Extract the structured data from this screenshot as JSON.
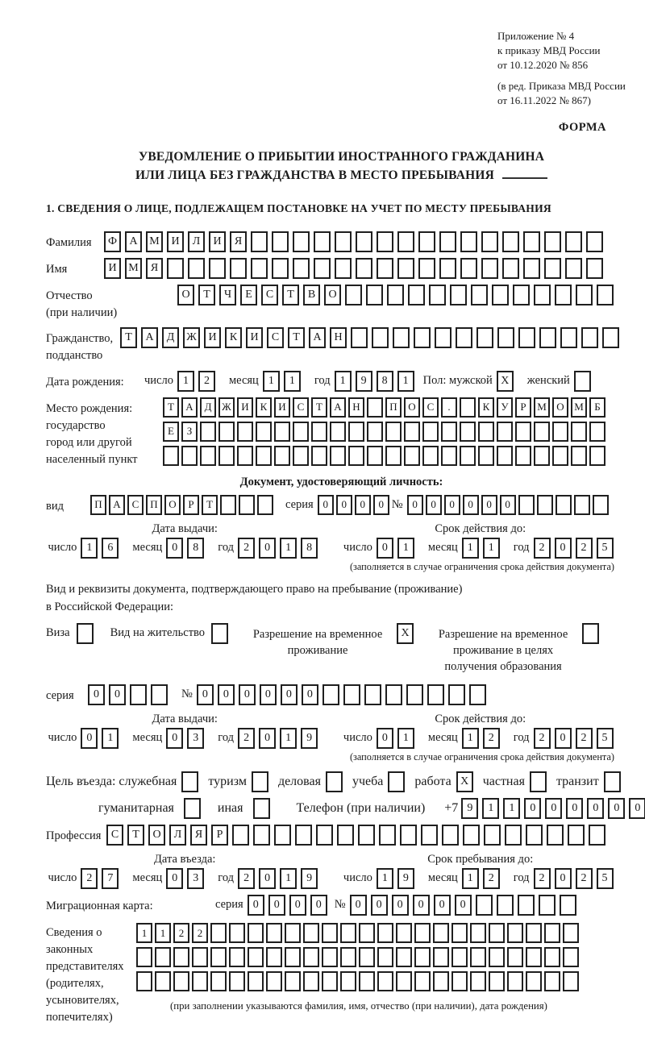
{
  "header": {
    "lines": [
      "Приложение № 4",
      "к приказу МВД России",
      "от 10.12.2020 № 856"
    ],
    "amendment": [
      "(в ред. Приказа МВД России",
      "от 16.11.2022 № 867)"
    ],
    "form_label": "ФОРМА"
  },
  "title": {
    "line1": "УВЕДОМЛЕНИЕ О ПРИБЫТИИ ИНОСТРАННОГО ГРАЖДАНИНА",
    "line2": "ИЛИ ЛИЦА БЕЗ ГРАЖДАНСТВА В МЕСТО ПРЕБЫВАНИЯ"
  },
  "section1_heading": "1. СВЕДЕНИЯ О ЛИЦЕ, ПОДЛЕЖАЩЕМ ПОСТАНОВКЕ НА УЧЕТ ПО МЕСТУ ПРЕБЫВАНИЯ",
  "date_labels": {
    "day": "число",
    "month": "месяц",
    "year": "год"
  },
  "date_headings": {
    "issue": "Дата выдачи:",
    "valid": "Срок действия до:",
    "entry": "Дата въезда:",
    "stay": "Срок пребывания до:"
  },
  "validity_note": "(заполняется в случае ограничения срока действия документа)",
  "person": {
    "surname": {
      "label": "Фамилия",
      "value": "ФАМИЛИЯ",
      "cells": 24
    },
    "given_name": {
      "label": "Имя",
      "value": "ИМЯ",
      "cells": 24
    },
    "patronymic": {
      "label": "Отчество",
      "note": "(при наличии)",
      "value": "ОТЧЕСТВО",
      "cells": 21
    },
    "citizenship": {
      "label1": "Гражданство,",
      "label2": "подданство",
      "value": "ТАДЖИКИСТАН",
      "cells": 24
    },
    "birth_date": {
      "label": "Дата рождения:",
      "day": {
        "value": "12",
        "cells": 2
      },
      "month": {
        "value": "11",
        "cells": 2
      },
      "year": {
        "value": "1981",
        "cells": 4
      }
    },
    "sex": {
      "label": "Пол: мужской",
      "male": "X",
      "female_label": "женский",
      "female": ""
    },
    "birth_place": {
      "label1": "Место рождения:",
      "label2": "государство",
      "label3": "город или другой",
      "label4": "населенный пункт",
      "row1": {
        "value": "ТАДЖИКИСТАН ПОС. КУРМОМБ",
        "cells": 24
      },
      "row2": {
        "value": "ЕЗ",
        "cells": 24
      },
      "row3": {
        "value": "",
        "cells": 24
      }
    }
  },
  "identity_doc": {
    "heading": "Документ, удостоверяющий личность:",
    "type": {
      "label": "вид",
      "value": "ПАСПОРТ",
      "cells": 10
    },
    "series": {
      "label": "серия",
      "value": "0000",
      "cells": 4
    },
    "number": {
      "label": "№",
      "value": "000000",
      "cells": 11
    },
    "issue": {
      "day": {
        "value": "16",
        "cells": 2
      },
      "month": {
        "value": "08",
        "cells": 2
      },
      "year": {
        "value": "2018",
        "cells": 4
      }
    },
    "valid": {
      "day": {
        "value": "01",
        "cells": 2
      },
      "month": {
        "value": "11",
        "cells": 2
      },
      "year": {
        "value": "2025",
        "cells": 4
      }
    }
  },
  "residence_doc": {
    "intro1": "Вид и реквизиты документа, подтверждающего право на пребывание (проживание)",
    "intro2": "в Российской Федерации:",
    "visa": {
      "label": "Виза",
      "checked": ""
    },
    "residence_permit": {
      "label": "Вид на жительство",
      "checked": ""
    },
    "temp_permit": {
      "label": "Разрешение на временное проживание",
      "checked": "X"
    },
    "temp_permit_edu": {
      "label": "Разрешение на временное проживание в целях получения образования",
      "checked": ""
    },
    "series": {
      "label": "серия",
      "value": "00",
      "cells": 4
    },
    "number": {
      "label": "№",
      "value": "000000",
      "cells": 14
    },
    "issue": {
      "day": {
        "value": "01",
        "cells": 2
      },
      "month": {
        "value": "03",
        "cells": 2
      },
      "year": {
        "value": "2019",
        "cells": 4
      }
    },
    "valid": {
      "day": {
        "value": "01",
        "cells": 2
      },
      "month": {
        "value": "12",
        "cells": 2
      },
      "year": {
        "value": "2025",
        "cells": 4
      }
    }
  },
  "entry_purpose": {
    "label": "Цель въезда: служебная",
    "options": [
      {
        "label": "туризм",
        "checked": ""
      },
      {
        "label": "деловая",
        "checked": ""
      },
      {
        "label": "учеба",
        "checked": ""
      },
      {
        "label": "работа",
        "checked": "X"
      },
      {
        "label": "частная",
        "checked": ""
      },
      {
        "label": "транзит",
        "checked": ""
      }
    ],
    "official_checked": "",
    "humanitarian_label": "гуманитарная",
    "humanitarian_checked": "",
    "other_label": "иная",
    "other_checked": "",
    "phone_label": "Телефон (при наличии)",
    "phone_prefix": "+7",
    "phone": {
      "value": "911000000",
      "cells": 10
    }
  },
  "profession": {
    "label": "Профессия",
    "value": "СТОЛЯР",
    "cells": 24
  },
  "entry_dates": {
    "entry": {
      "day": {
        "value": "27",
        "cells": 2
      },
      "month": {
        "value": "03",
        "cells": 2
      },
      "year": {
        "value": "2019",
        "cells": 4
      }
    },
    "stay": {
      "day": {
        "value": "19",
        "cells": 2
      },
      "month": {
        "value": "12",
        "cells": 2
      },
      "year": {
        "value": "2025",
        "cells": 4
      }
    }
  },
  "migration_card": {
    "label": "Миграционная карта:",
    "series": {
      "label": "серия",
      "value": "0000",
      "cells": 4
    },
    "number": {
      "label": "№",
      "value": "000000",
      "cells": 11
    }
  },
  "representatives": {
    "label1": "Сведения о",
    "label2": "законных",
    "label3": "представителях",
    "label4": "(родителях,",
    "label5": "усыновителях,",
    "label6": "попечителях)",
    "row1": {
      "value": "1122",
      "cells": 24
    },
    "row2": {
      "value": "",
      "cells": 24
    },
    "row3": {
      "value": "",
      "cells": 24
    },
    "caption": "(при заполнении указываются фамилия, имя, отчество (при наличии), дата рождения)"
  }
}
